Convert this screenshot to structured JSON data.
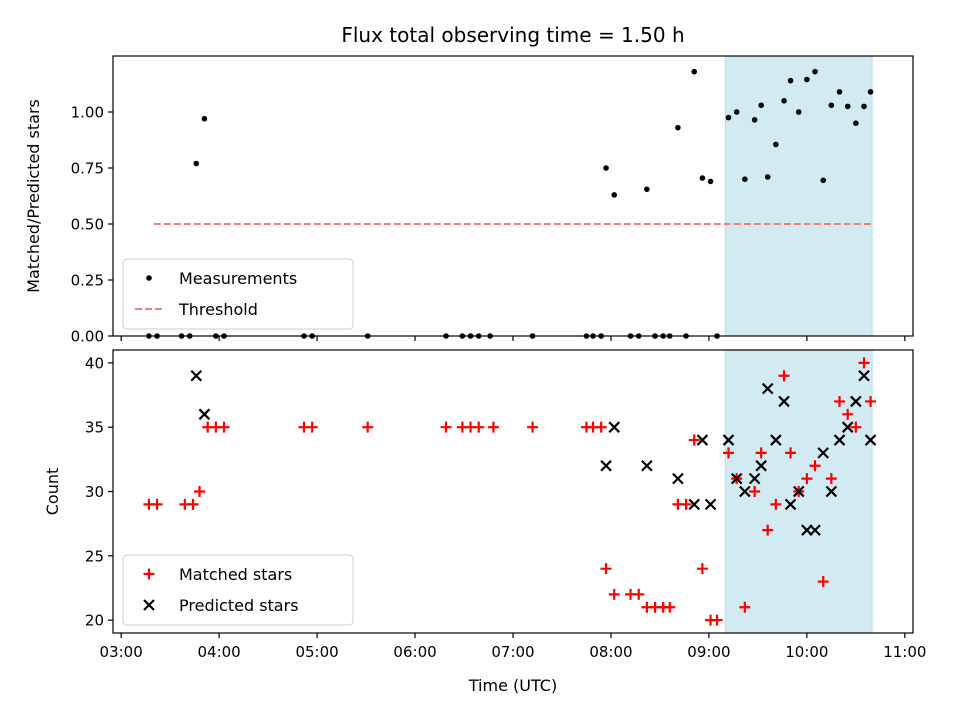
{
  "chart_data": [
    {
      "type": "scatter",
      "title": "Flux total observing time = 1.50 h",
      "xlabel": "",
      "ylabel": "Matched/Predicted stars",
      "ylim": [
        0,
        1.25
      ],
      "yticks": [
        "0.00",
        "0.25",
        "0.50",
        "0.75",
        "1.00"
      ],
      "highlight_span": {
        "start": "09:10",
        "end": "10:40",
        "color": "#add8e6"
      },
      "threshold": {
        "name": "Threshold",
        "value": 0.5,
        "x_start": "03:20",
        "x_end": "10:40",
        "color": "#f08080"
      },
      "legend": {
        "position": "lower-left"
      },
      "series": [
        {
          "name": "Measurements",
          "color": "#000000",
          "marker": "dot",
          "points": [
            [
              "03:17",
              0
            ],
            [
              "03:22",
              0
            ],
            [
              "03:37",
              0
            ],
            [
              "03:42",
              0
            ],
            [
              "03:46",
              0.77
            ],
            [
              "03:51",
              0.97
            ],
            [
              "03:58",
              0
            ],
            [
              "04:03",
              0
            ],
            [
              "04:52",
              0
            ],
            [
              "04:57",
              0
            ],
            [
              "05:31",
              0
            ],
            [
              "06:19",
              0
            ],
            [
              "06:29",
              0
            ],
            [
              "06:34",
              0
            ],
            [
              "06:39",
              0
            ],
            [
              "06:46",
              0
            ],
            [
              "07:12",
              0
            ],
            [
              "07:45",
              0
            ],
            [
              "07:49",
              0
            ],
            [
              "07:54",
              0
            ],
            [
              "07:57",
              0.75
            ],
            [
              "08:02",
              0.63
            ],
            [
              "08:12",
              0
            ],
            [
              "08:17",
              0
            ],
            [
              "08:22",
              0.655
            ],
            [
              "08:27",
              0
            ],
            [
              "08:32",
              0
            ],
            [
              "08:36",
              0
            ],
            [
              "08:41",
              0.93
            ],
            [
              "08:46",
              0
            ],
            [
              "08:51",
              1.18
            ],
            [
              "08:56",
              0.705
            ],
            [
              "09:01",
              0.69
            ],
            [
              "09:05",
              0
            ],
            [
              "09:12",
              0.975
            ],
            [
              "09:17",
              1.0
            ],
            [
              "09:22",
              0.7
            ],
            [
              "09:28",
              0.965
            ],
            [
              "09:32",
              1.03
            ],
            [
              "09:36",
              0.71
            ],
            [
              "09:41",
              0.855
            ],
            [
              "09:46",
              1.05
            ],
            [
              "09:50",
              1.14
            ],
            [
              "09:55",
              1.0
            ],
            [
              "10:00",
              1.145
            ],
            [
              "10:05",
              1.18
            ],
            [
              "10:10",
              0.695
            ],
            [
              "10:15",
              1.03
            ],
            [
              "10:20",
              1.09
            ],
            [
              "10:25",
              1.025
            ],
            [
              "10:30",
              0.95
            ],
            [
              "10:35",
              1.025
            ],
            [
              "10:39",
              1.09
            ]
          ]
        }
      ]
    },
    {
      "type": "scatter",
      "title": "",
      "xlabel": "Time (UTC)",
      "ylabel": "Count",
      "ylim": [
        19,
        41
      ],
      "yticks": [
        "20",
        "25",
        "30",
        "35",
        "40"
      ],
      "xticks": [
        "03:00",
        "04:00",
        "05:00",
        "06:00",
        "07:00",
        "08:00",
        "09:00",
        "10:00",
        "11:00"
      ],
      "highlight_span": {
        "start": "09:10",
        "end": "10:40",
        "color": "#add8e6"
      },
      "legend": {
        "position": "lower-left"
      },
      "series": [
        {
          "name": "Matched stars",
          "color": "#ff0000",
          "marker": "plus",
          "points": [
            [
              "03:17",
              29
            ],
            [
              "03:22",
              29
            ],
            [
              "03:39",
              29
            ],
            [
              "03:44",
              29
            ],
            [
              "03:48",
              30
            ],
            [
              "03:53",
              35
            ],
            [
              "03:58",
              35
            ],
            [
              "04:03",
              35
            ],
            [
              "04:52",
              35
            ],
            [
              "04:57",
              35
            ],
            [
              "05:31",
              35
            ],
            [
              "06:19",
              35
            ],
            [
              "06:29",
              35
            ],
            [
              "06:34",
              35
            ],
            [
              "06:39",
              35
            ],
            [
              "06:48",
              35
            ],
            [
              "07:12",
              35
            ],
            [
              "07:45",
              35
            ],
            [
              "07:49",
              35
            ],
            [
              "07:54",
              35
            ],
            [
              "07:57",
              24
            ],
            [
              "08:02",
              22
            ],
            [
              "08:12",
              22
            ],
            [
              "08:17",
              22
            ],
            [
              "08:22",
              21
            ],
            [
              "08:27",
              21
            ],
            [
              "08:32",
              21
            ],
            [
              "08:36",
              21
            ],
            [
              "08:41",
              29
            ],
            [
              "08:46",
              29
            ],
            [
              "08:51",
              34
            ],
            [
              "08:56",
              24
            ],
            [
              "09:01",
              20
            ],
            [
              "09:05",
              20
            ],
            [
              "09:12",
              33
            ],
            [
              "09:17",
              31
            ],
            [
              "09:22",
              21
            ],
            [
              "09:28",
              30
            ],
            [
              "09:32",
              33
            ],
            [
              "09:36",
              27
            ],
            [
              "09:41",
              29
            ],
            [
              "09:46",
              39
            ],
            [
              "09:50",
              33
            ],
            [
              "09:55",
              30
            ],
            [
              "10:00",
              31
            ],
            [
              "10:05",
              32
            ],
            [
              "10:10",
              23
            ],
            [
              "10:15",
              31
            ],
            [
              "10:20",
              37
            ],
            [
              "10:25",
              36
            ],
            [
              "10:30",
              35
            ],
            [
              "10:35",
              40
            ],
            [
              "10:39",
              37
            ]
          ]
        },
        {
          "name": "Predicted stars",
          "color": "#000000",
          "marker": "x",
          "points": [
            [
              "03:46",
              39
            ],
            [
              "03:51",
              36
            ],
            [
              "07:57",
              32
            ],
            [
              "08:02",
              35
            ],
            [
              "08:22",
              32
            ],
            [
              "08:41",
              31
            ],
            [
              "08:51",
              29
            ],
            [
              "08:56",
              34
            ],
            [
              "09:01",
              29
            ],
            [
              "09:12",
              34
            ],
            [
              "09:17",
              31
            ],
            [
              "09:22",
              30
            ],
            [
              "09:28",
              31
            ],
            [
              "09:32",
              32
            ],
            [
              "09:36",
              38
            ],
            [
              "09:41",
              34
            ],
            [
              "09:46",
              37
            ],
            [
              "09:50",
              29
            ],
            [
              "09:55",
              30
            ],
            [
              "10:00",
              27
            ],
            [
              "10:05",
              27
            ],
            [
              "10:10",
              33
            ],
            [
              "10:15",
              30
            ],
            [
              "10:20",
              34
            ],
            [
              "10:25",
              35
            ],
            [
              "10:30",
              37
            ],
            [
              "10:35",
              39
            ],
            [
              "10:39",
              34
            ]
          ]
        }
      ]
    }
  ]
}
